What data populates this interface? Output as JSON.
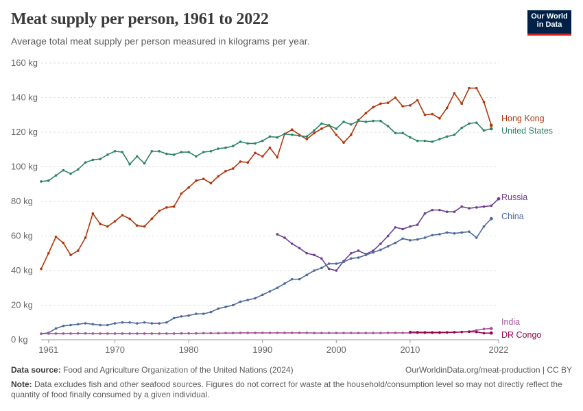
{
  "title": "Meat supply per person, 1961 to 2022",
  "subtitle": "Average total meat supply per person measured in kilograms per year.",
  "logo": {
    "line1": "Our World",
    "line2": "in Data"
  },
  "footer": {
    "source_label": "Data source:",
    "source_text": "Food and Agriculture Organization of the United Nations (2024)",
    "url": "OurWorldinData.org/meat-production | CC BY",
    "note_label": "Note:",
    "note_text": "Data excludes fish and other seafood sources. Figures do not correct for waste at the household/consumption level so may not directly reflect the quantity of food finally consumed by a given individual."
  },
  "chart_data": {
    "type": "line",
    "title": "Meat supply per person, 1961 to 2022",
    "xlim": [
      1960,
      2022
    ],
    "ylim": [
      0,
      160
    ],
    "x_ticks": [
      1961,
      1970,
      1980,
      1990,
      2000,
      2010,
      2022
    ],
    "y_ticks": [
      0,
      20,
      40,
      60,
      80,
      100,
      120,
      140,
      160
    ],
    "y_tick_labels": [
      "0 kg",
      "20 kg",
      "40 kg",
      "60 kg",
      "80 kg",
      "100 kg",
      "120 kg",
      "140 kg",
      "160 kg"
    ],
    "grid": "horizontal dashed",
    "legend": "line-end labels",
    "series": [
      {
        "name": "Hong Kong",
        "color": "#b13507",
        "start": 1960,
        "values": [
          41,
          50,
          59.5,
          56,
          49,
          51.5,
          59,
          73,
          67,
          65.5,
          68.5,
          72,
          70,
          66,
          65.5,
          70,
          74.5,
          76.5,
          77,
          84.5,
          88,
          92,
          93,
          90.5,
          94.5,
          97.5,
          99,
          103,
          102.5,
          108,
          106,
          111,
          105.5,
          119,
          121.5,
          118.5,
          116,
          119.5,
          122,
          124,
          118.5,
          114,
          118.5,
          127,
          131,
          134.5,
          136.5,
          137,
          140,
          135,
          135.5,
          138.5,
          130,
          130.5,
          128,
          134,
          142.5,
          136.5,
          145.5,
          145.5,
          137.5,
          124
        ]
      },
      {
        "name": "United States",
        "color": "#2c8465",
        "start": 1960,
        "values": [
          91.5,
          92,
          95,
          98,
          96,
          98.5,
          102.5,
          104,
          104.5,
          107,
          109,
          108.5,
          101.5,
          106,
          102,
          109,
          109,
          107.5,
          107,
          108.5,
          108.5,
          106,
          108.5,
          109,
          110.5,
          111,
          112,
          114.5,
          113.5,
          113.5,
          115,
          117.5,
          117,
          119,
          118.5,
          118,
          117.5,
          121,
          125,
          124,
          122,
          126,
          124.5,
          126.5,
          126,
          126.5,
          126.5,
          123.5,
          119.5,
          119.5,
          117,
          115,
          115,
          114.5,
          116,
          117.5,
          118.5,
          122.5,
          125,
          125.5,
          121,
          122
        ]
      },
      {
        "name": "Russia",
        "color": "#6d3e91",
        "start": 1992,
        "values": [
          61,
          59,
          55.5,
          53,
          50,
          49,
          47,
          41,
          40,
          45.5,
          50,
          51.5,
          49.5,
          51.5,
          55.5,
          60,
          65,
          64,
          65.5,
          66.5,
          73,
          75,
          75,
          74,
          74,
          77,
          76,
          76.5,
          77,
          77.5,
          81.5
        ]
      },
      {
        "name": "China",
        "color": "#4c6a9c",
        "start": 1960,
        "values": [
          3.5,
          4,
          6.5,
          8,
          8.5,
          9,
          9.5,
          9,
          8.5,
          8.5,
          9.5,
          10,
          10,
          9.5,
          10,
          9.5,
          9.5,
          10,
          12.5,
          13.5,
          14,
          15,
          15,
          16,
          18,
          19,
          20,
          22,
          23,
          24,
          26,
          28,
          30,
          32.5,
          35,
          35,
          37.5,
          40,
          41.5,
          44,
          44,
          45,
          47,
          47.5,
          49,
          50.5,
          52,
          54,
          56,
          58.5,
          57.5,
          58,
          59,
          60.5,
          61,
          62,
          61.5,
          62,
          62.5,
          59,
          65.5,
          70
        ]
      },
      {
        "name": "India",
        "color": "#a2559c",
        "start": 1960,
        "values": [
          3.5,
          3.6,
          3.6,
          3.6,
          3.6,
          3.7,
          3.7,
          3.6,
          3.6,
          3.6,
          3.6,
          3.6,
          3.6,
          3.6,
          3.6,
          3.6,
          3.6,
          3.6,
          3.6,
          3.7,
          3.7,
          3.7,
          3.8,
          3.8,
          3.8,
          3.9,
          3.9,
          4,
          4,
          4,
          4,
          4,
          4,
          4,
          4,
          4,
          4,
          3.9,
          3.9,
          3.9,
          3.9,
          3.9,
          3.9,
          3.9,
          3.9,
          3.9,
          3.9,
          4,
          4,
          4,
          4,
          4,
          4,
          4,
          4,
          4.2,
          4.3,
          4.5,
          4.8,
          5.5,
          6.2,
          6.5
        ]
      },
      {
        "name": "DR Congo",
        "color": "#970046",
        "start": 2010,
        "values": [
          4.5,
          4.4,
          4.3,
          4.3,
          4.3,
          4.3,
          4.4,
          4.5,
          4.6,
          4.5,
          3.8,
          3.9
        ]
      }
    ]
  }
}
